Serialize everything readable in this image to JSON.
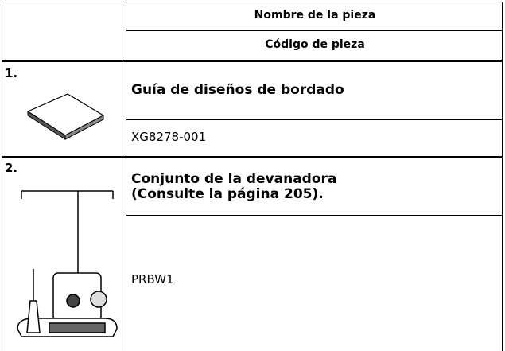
{
  "header": {
    "name_label": "Nombre de la pieza",
    "code_label": "Código de pieza"
  },
  "items": [
    {
      "number": "1.",
      "name_lines": [
        "Guía de diseños de bordado"
      ],
      "code": "XG8278-001"
    },
    {
      "number": "2.",
      "name_lines": [
        "Conjunto de la devanadora",
        "(Consulte la página 205)."
      ],
      "code": "PRBW1"
    }
  ]
}
